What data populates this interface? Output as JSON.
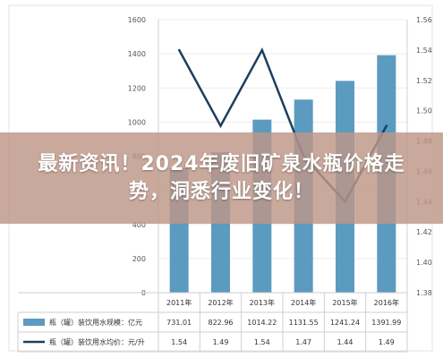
{
  "banner": {
    "headline": "最新资讯！2024年废旧矿泉水瓶价格走势，洞悉行业变化！"
  },
  "chart_data": {
    "type": "bar+line",
    "categories": [
      "2011年",
      "2012年",
      "2013年",
      "2014年",
      "2015年",
      "2016年"
    ],
    "series": [
      {
        "name": "瓶（罐）装饮用水规模：亿元",
        "type": "bar",
        "axis": "left",
        "values": [
          731.01,
          822.96,
          1014.22,
          1131.55,
          1241.24,
          1391.99
        ],
        "labels": [
          "731.01",
          "822.96",
          "1014.22",
          "1131.55",
          "1241.24",
          "1391.99"
        ],
        "color": "#5b9bbf"
      },
      {
        "name": "瓶（罐）装饮用水均价：元/升",
        "type": "line",
        "axis": "right",
        "values": [
          1.54,
          1.49,
          1.54,
          1.47,
          1.44,
          1.49
        ],
        "labels": [
          "1.54",
          "1.49",
          "1.54",
          "1.47",
          "1.44",
          "1.49"
        ],
        "color": "#1d3f5e"
      }
    ],
    "y_left": {
      "ylim": [
        0,
        1600
      ],
      "ticks": [
        "0",
        "200",
        "400",
        "600",
        "800",
        "1000",
        "1200",
        "1400",
        "1600"
      ]
    },
    "y_right": {
      "ylim": [
        1.38,
        1.56
      ],
      "ticks": [
        "1.38",
        "1.40",
        "1.42",
        "1.44",
        "1.46",
        "1.48",
        "1.50",
        "1.52",
        "1.54",
        "1.56"
      ]
    },
    "legend": "table-below"
  }
}
